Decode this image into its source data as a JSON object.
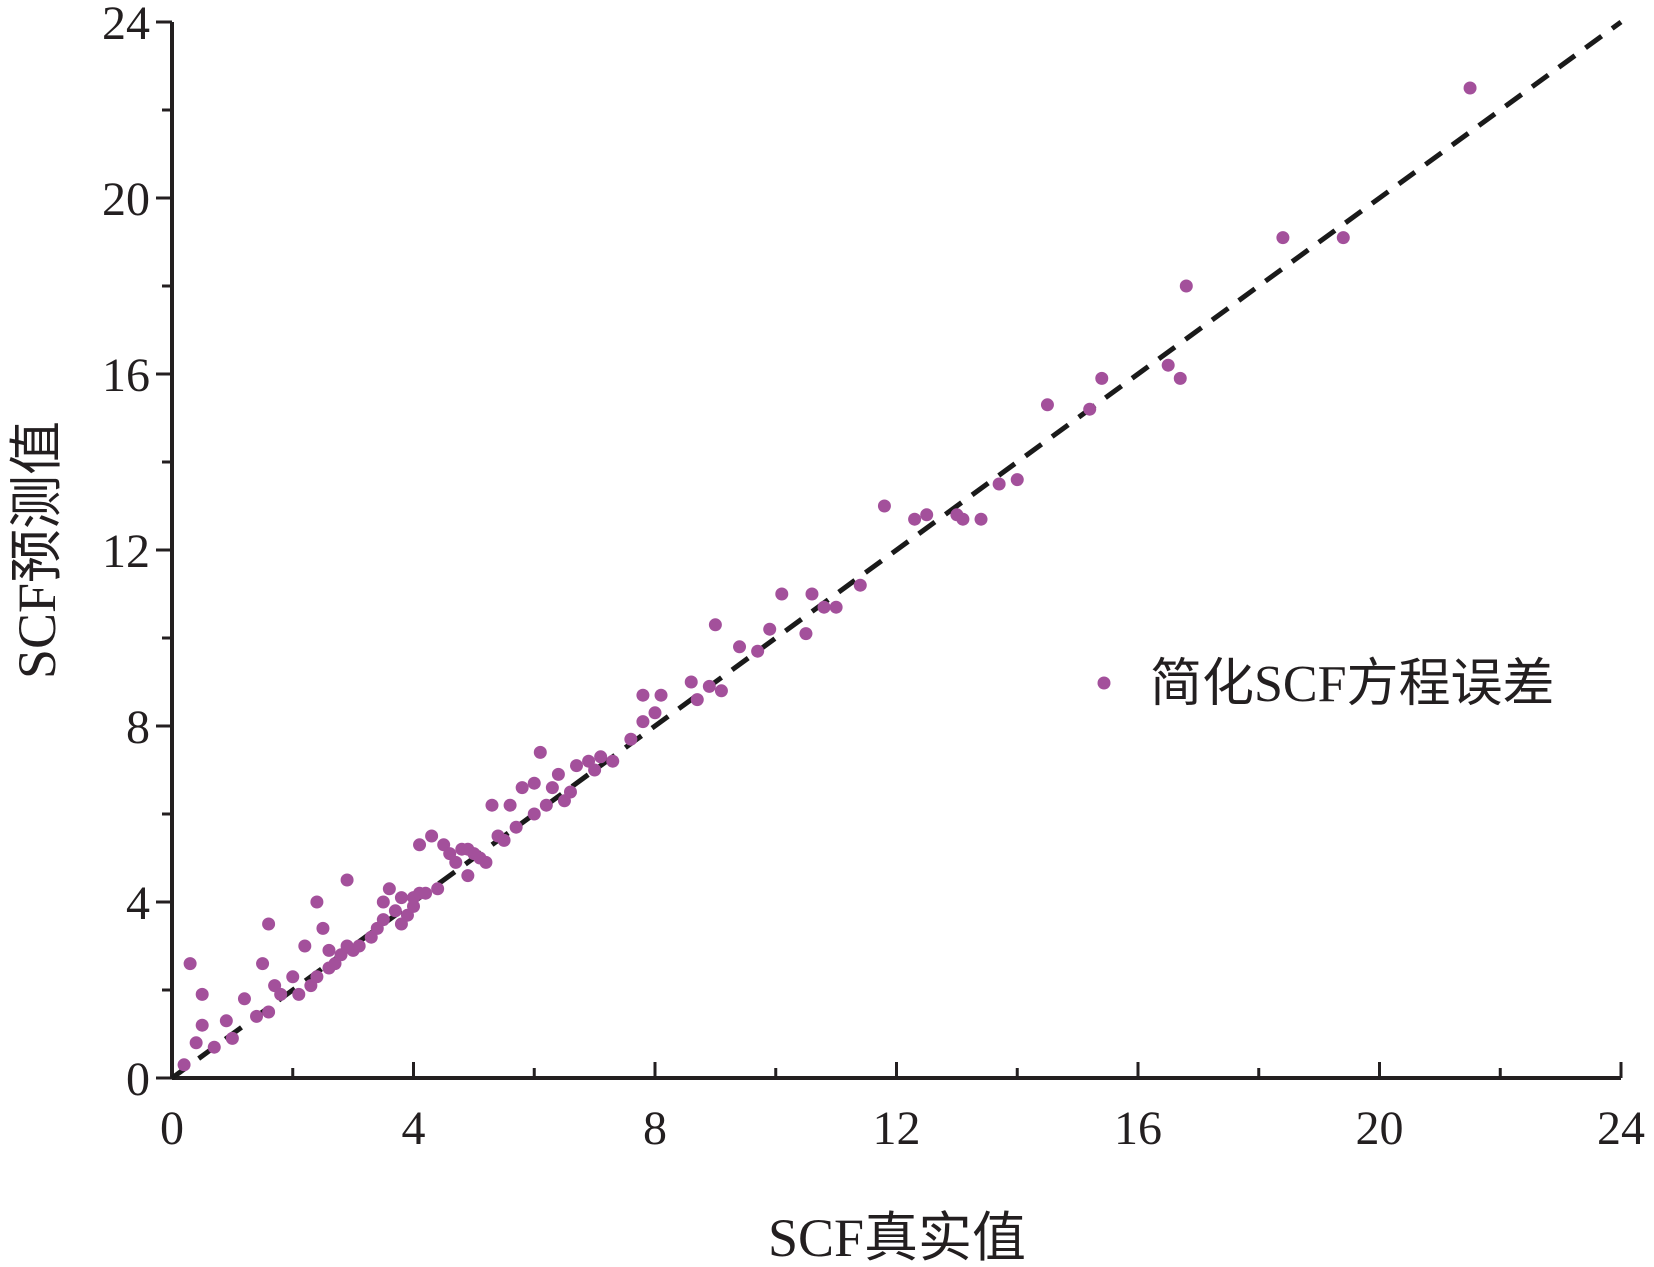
{
  "chart_data": {
    "type": "scatter",
    "title": "",
    "xlabel": "SCF真实值",
    "ylabel": "SCF预测值",
    "xlim": [
      0,
      24
    ],
    "ylim": [
      0,
      24
    ],
    "x_ticks": [
      "0",
      "4",
      "8",
      "12",
      "16",
      "20",
      "24"
    ],
    "y_ticks": [
      "0",
      "4",
      "8",
      "12",
      "16",
      "20",
      "24"
    ],
    "grid": false,
    "legend_position": "right",
    "series": [
      {
        "name": "简化SCF方程误差",
        "color": "#a3509b",
        "points": [
          [
            0.2,
            0.3
          ],
          [
            0.3,
            2.6
          ],
          [
            0.4,
            0.8
          ],
          [
            0.5,
            1.2
          ],
          [
            0.5,
            1.9
          ],
          [
            0.7,
            0.7
          ],
          [
            0.9,
            1.3
          ],
          [
            1.0,
            0.9
          ],
          [
            1.2,
            1.8
          ],
          [
            1.4,
            1.4
          ],
          [
            1.5,
            2.6
          ],
          [
            1.6,
            1.5
          ],
          [
            1.6,
            3.5
          ],
          [
            1.7,
            2.1
          ],
          [
            1.8,
            1.9
          ],
          [
            2.0,
            2.3
          ],
          [
            2.1,
            1.9
          ],
          [
            2.2,
            3.0
          ],
          [
            2.3,
            2.1
          ],
          [
            2.4,
            2.3
          ],
          [
            2.4,
            4.0
          ],
          [
            2.5,
            3.4
          ],
          [
            2.6,
            2.5
          ],
          [
            2.6,
            2.9
          ],
          [
            2.7,
            2.6
          ],
          [
            2.8,
            2.8
          ],
          [
            2.9,
            3.0
          ],
          [
            2.9,
            4.5
          ],
          [
            3.0,
            2.9
          ],
          [
            3.1,
            3.0
          ],
          [
            3.3,
            3.2
          ],
          [
            3.4,
            3.4
          ],
          [
            3.5,
            3.6
          ],
          [
            3.5,
            4.0
          ],
          [
            3.6,
            4.3
          ],
          [
            3.7,
            3.8
          ],
          [
            3.8,
            3.5
          ],
          [
            3.8,
            4.1
          ],
          [
            3.9,
            3.7
          ],
          [
            4.0,
            3.9
          ],
          [
            4.0,
            4.1
          ],
          [
            4.1,
            4.2
          ],
          [
            4.1,
            5.3
          ],
          [
            4.2,
            4.2
          ],
          [
            4.3,
            5.5
          ],
          [
            4.4,
            4.3
          ],
          [
            4.5,
            5.3
          ],
          [
            4.6,
            5.1
          ],
          [
            4.7,
            4.9
          ],
          [
            4.8,
            5.2
          ],
          [
            4.9,
            4.6
          ],
          [
            4.9,
            5.2
          ],
          [
            5.0,
            5.1
          ],
          [
            5.1,
            5.0
          ],
          [
            5.2,
            4.9
          ],
          [
            5.3,
            6.2
          ],
          [
            5.4,
            5.5
          ],
          [
            5.5,
            5.4
          ],
          [
            5.6,
            6.2
          ],
          [
            5.7,
            5.7
          ],
          [
            5.8,
            6.6
          ],
          [
            6.0,
            6.0
          ],
          [
            6.0,
            6.7
          ],
          [
            6.1,
            7.4
          ],
          [
            6.2,
            6.2
          ],
          [
            6.3,
            6.6
          ],
          [
            6.4,
            6.9
          ],
          [
            6.5,
            6.3
          ],
          [
            6.6,
            6.5
          ],
          [
            6.7,
            7.1
          ],
          [
            6.9,
            7.2
          ],
          [
            7.0,
            7.0
          ],
          [
            7.1,
            7.3
          ],
          [
            7.3,
            7.2
          ],
          [
            7.6,
            7.7
          ],
          [
            7.8,
            8.1
          ],
          [
            7.8,
            8.7
          ],
          [
            8.0,
            8.3
          ],
          [
            8.1,
            8.7
          ],
          [
            8.6,
            9.0
          ],
          [
            8.7,
            8.6
          ],
          [
            8.9,
            8.9
          ],
          [
            9.0,
            10.3
          ],
          [
            9.1,
            8.8
          ],
          [
            9.4,
            9.8
          ],
          [
            9.7,
            9.7
          ],
          [
            9.9,
            10.2
          ],
          [
            10.1,
            11.0
          ],
          [
            10.5,
            10.1
          ],
          [
            10.6,
            11.0
          ],
          [
            10.8,
            10.7
          ],
          [
            11.0,
            10.7
          ],
          [
            11.4,
            11.2
          ],
          [
            11.8,
            13.0
          ],
          [
            12.3,
            12.7
          ],
          [
            12.5,
            12.8
          ],
          [
            13.0,
            12.8
          ],
          [
            13.1,
            12.7
          ],
          [
            13.4,
            12.7
          ],
          [
            13.7,
            13.5
          ],
          [
            14.0,
            13.6
          ],
          [
            14.5,
            15.3
          ],
          [
            15.2,
            15.2
          ],
          [
            15.4,
            15.9
          ],
          [
            16.5,
            16.2
          ],
          [
            16.7,
            15.9
          ],
          [
            16.8,
            18.0
          ],
          [
            18.4,
            19.1
          ],
          [
            19.4,
            19.1
          ],
          [
            21.5,
            22.5
          ]
        ]
      }
    ],
    "reference_line": {
      "x": [
        0,
        24
      ],
      "y": [
        0,
        24
      ],
      "style": "dashed",
      "color": "#1a1a1a"
    }
  }
}
